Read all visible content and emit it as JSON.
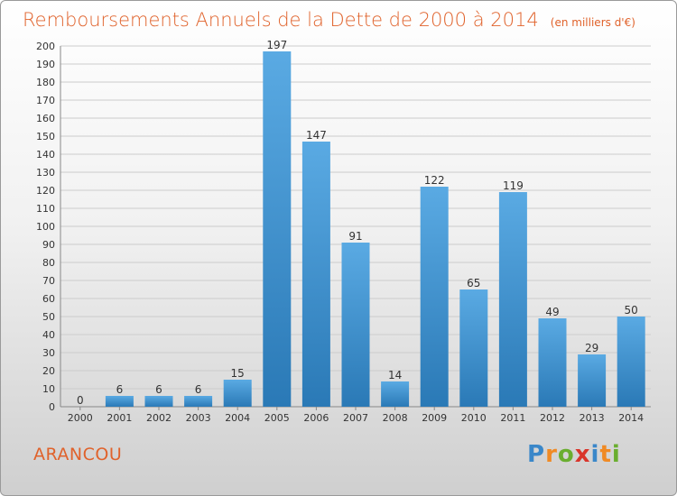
{
  "title": "Remboursements Annuels de la Dette de 2000 à 2014",
  "subtitle": "(en milliers d'€)",
  "commune": "ARANCOU",
  "logo": {
    "text": "Proxiti",
    "letters": [
      "P",
      "r",
      "o",
      "x",
      "i",
      "t",
      "i"
    ],
    "colors": [
      "#3a87c9",
      "#f08a24",
      "#6aae2f",
      "#d9352b",
      "#3a87c9",
      "#f08a24",
      "#6aae2f"
    ]
  },
  "colors": {
    "accent": "#e0622b",
    "bar_top": "#5aaae3",
    "bar_bottom": "#2a79b6",
    "grid": "#cccccc"
  },
  "chart_data": {
    "type": "bar",
    "title": "Remboursements Annuels de la Dette de 2000 à 2014",
    "subtitle": "(en milliers d'€)",
    "categories": [
      "2000",
      "2001",
      "2002",
      "2003",
      "2004",
      "2005",
      "2006",
      "2007",
      "2008",
      "2009",
      "2010",
      "2011",
      "2012",
      "2013",
      "2014"
    ],
    "values": [
      0,
      6,
      6,
      6,
      15,
      197,
      147,
      91,
      14,
      122,
      65,
      119,
      49,
      29,
      50
    ],
    "ylim": [
      0,
      200
    ],
    "yticks": [
      0,
      10,
      20,
      30,
      40,
      50,
      60,
      70,
      80,
      90,
      100,
      110,
      120,
      130,
      140,
      150,
      160,
      170,
      180,
      190,
      200
    ],
    "grid": true,
    "data_labels": true
  }
}
